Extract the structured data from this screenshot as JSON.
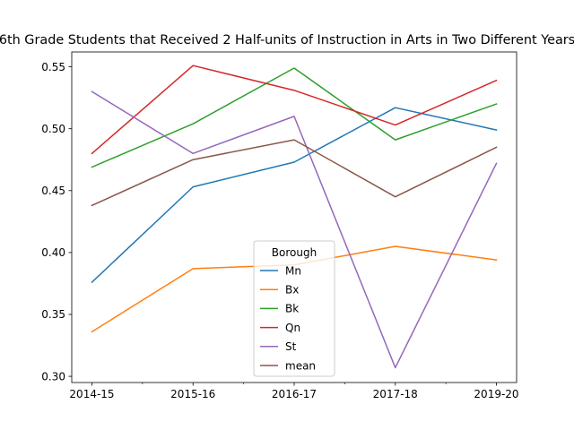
{
  "chart_data": {
    "type": "line",
    "title": "6th Grade Students that Received 2 Half-units of Instruction in Arts in Two Different Years",
    "x": [
      "2014-15",
      "2015-16",
      "2016-17",
      "2017-18",
      "2019-20"
    ],
    "ylim": [
      0.295,
      0.562
    ],
    "yticks": [
      "0.30",
      "0.35",
      "0.40",
      "0.45",
      "0.50",
      "0.55"
    ],
    "grid": false,
    "legend": {
      "title": "Borough",
      "placement": "lower-center"
    },
    "series": [
      {
        "name": "Mn",
        "color": "#1f77b4",
        "values": [
          0.376,
          0.453,
          0.473,
          0.517,
          0.499
        ]
      },
      {
        "name": "Bx",
        "color": "#ff7f0e",
        "values": [
          0.336,
          0.387,
          0.39,
          0.405,
          0.394
        ]
      },
      {
        "name": "Bk",
        "color": "#2ca02c",
        "values": [
          0.469,
          0.504,
          0.549,
          0.491,
          0.52
        ]
      },
      {
        "name": "Qn",
        "color": "#d62728",
        "values": [
          0.48,
          0.551,
          0.531,
          0.503,
          0.539
        ]
      },
      {
        "name": "St",
        "color": "#9467bd",
        "values": [
          0.53,
          0.48,
          0.51,
          0.307,
          0.472
        ]
      },
      {
        "name": "mean",
        "color": "#8c564b",
        "values": [
          0.438,
          0.475,
          0.491,
          0.445,
          0.485
        ]
      }
    ]
  }
}
